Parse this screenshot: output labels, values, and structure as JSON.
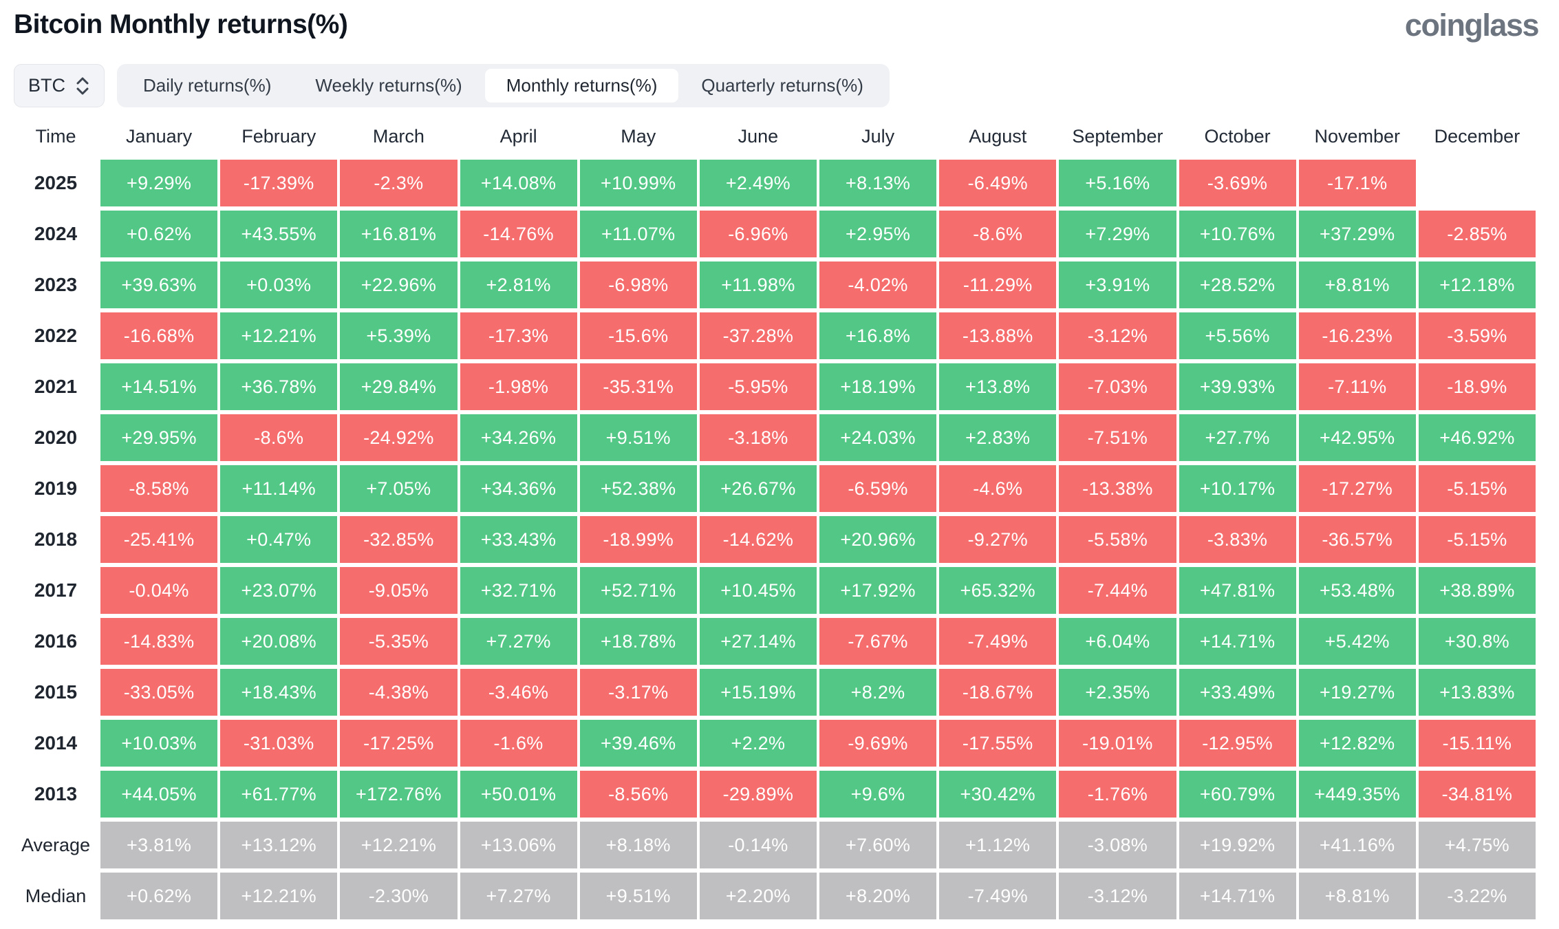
{
  "page": {
    "title": "Bitcoin Monthly returns(%)",
    "logo": "coinglass"
  },
  "controls": {
    "symbol_select": {
      "value": "BTC",
      "icon": "updown-chevron-icon"
    },
    "tabs": [
      {
        "label": "Daily returns(%)",
        "active": false
      },
      {
        "label": "Weekly returns(%)",
        "active": false
      },
      {
        "label": "Monthly returns(%)",
        "active": true
      },
      {
        "label": "Quarterly returns(%)",
        "active": false
      }
    ]
  },
  "chart_data": {
    "type": "heatmap",
    "title": "Bitcoin Monthly returns(%)",
    "time_column_header": "Time",
    "columns": [
      "January",
      "February",
      "March",
      "April",
      "May",
      "June",
      "July",
      "August",
      "September",
      "October",
      "November",
      "December"
    ],
    "rows": [
      {
        "label": "2025",
        "type": "year",
        "values": [
          "+9.29%",
          "-17.39%",
          "-2.3%",
          "+14.08%",
          "+10.99%",
          "+2.49%",
          "+8.13%",
          "-6.49%",
          "+5.16%",
          "-3.69%",
          "-17.1%",
          ""
        ]
      },
      {
        "label": "2024",
        "type": "year",
        "values": [
          "+0.62%",
          "+43.55%",
          "+16.81%",
          "-14.76%",
          "+11.07%",
          "-6.96%",
          "+2.95%",
          "-8.6%",
          "+7.29%",
          "+10.76%",
          "+37.29%",
          "-2.85%"
        ]
      },
      {
        "label": "2023",
        "type": "year",
        "values": [
          "+39.63%",
          "+0.03%",
          "+22.96%",
          "+2.81%",
          "-6.98%",
          "+11.98%",
          "-4.02%",
          "-11.29%",
          "+3.91%",
          "+28.52%",
          "+8.81%",
          "+12.18%"
        ]
      },
      {
        "label": "2022",
        "type": "year",
        "values": [
          "-16.68%",
          "+12.21%",
          "+5.39%",
          "-17.3%",
          "-15.6%",
          "-37.28%",
          "+16.8%",
          "-13.88%",
          "-3.12%",
          "+5.56%",
          "-16.23%",
          "-3.59%"
        ]
      },
      {
        "label": "2021",
        "type": "year",
        "values": [
          "+14.51%",
          "+36.78%",
          "+29.84%",
          "-1.98%",
          "-35.31%",
          "-5.95%",
          "+18.19%",
          "+13.8%",
          "-7.03%",
          "+39.93%",
          "-7.11%",
          "-18.9%"
        ]
      },
      {
        "label": "2020",
        "type": "year",
        "values": [
          "+29.95%",
          "-8.6%",
          "-24.92%",
          "+34.26%",
          "+9.51%",
          "-3.18%",
          "+24.03%",
          "+2.83%",
          "-7.51%",
          "+27.7%",
          "+42.95%",
          "+46.92%"
        ]
      },
      {
        "label": "2019",
        "type": "year",
        "values": [
          "-8.58%",
          "+11.14%",
          "+7.05%",
          "+34.36%",
          "+52.38%",
          "+26.67%",
          "-6.59%",
          "-4.6%",
          "-13.38%",
          "+10.17%",
          "-17.27%",
          "-5.15%"
        ]
      },
      {
        "label": "2018",
        "type": "year",
        "values": [
          "-25.41%",
          "+0.47%",
          "-32.85%",
          "+33.43%",
          "-18.99%",
          "-14.62%",
          "+20.96%",
          "-9.27%",
          "-5.58%",
          "-3.83%",
          "-36.57%",
          "-5.15%"
        ]
      },
      {
        "label": "2017",
        "type": "year",
        "values": [
          "-0.04%",
          "+23.07%",
          "-9.05%",
          "+32.71%",
          "+52.71%",
          "+10.45%",
          "+17.92%",
          "+65.32%",
          "-7.44%",
          "+47.81%",
          "+53.48%",
          "+38.89%"
        ]
      },
      {
        "label": "2016",
        "type": "year",
        "values": [
          "-14.83%",
          "+20.08%",
          "-5.35%",
          "+7.27%",
          "+18.78%",
          "+27.14%",
          "-7.67%",
          "-7.49%",
          "+6.04%",
          "+14.71%",
          "+5.42%",
          "+30.8%"
        ]
      },
      {
        "label": "2015",
        "type": "year",
        "values": [
          "-33.05%",
          "+18.43%",
          "-4.38%",
          "-3.46%",
          "-3.17%",
          "+15.19%",
          "+8.2%",
          "-18.67%",
          "+2.35%",
          "+33.49%",
          "+19.27%",
          "+13.83%"
        ]
      },
      {
        "label": "2014",
        "type": "year",
        "values": [
          "+10.03%",
          "-31.03%",
          "-17.25%",
          "-1.6%",
          "+39.46%",
          "+2.2%",
          "-9.69%",
          "-17.55%",
          "-19.01%",
          "-12.95%",
          "+12.82%",
          "-15.11%"
        ]
      },
      {
        "label": "2013",
        "type": "year",
        "values": [
          "+44.05%",
          "+61.77%",
          "+172.76%",
          "+50.01%",
          "-8.56%",
          "-29.89%",
          "+9.6%",
          "+30.42%",
          "-1.76%",
          "+60.79%",
          "+449.35%",
          "-34.81%"
        ]
      },
      {
        "label": "Average",
        "type": "summary",
        "values": [
          "+3.81%",
          "+13.12%",
          "+12.21%",
          "+13.06%",
          "+8.18%",
          "-0.14%",
          "+7.60%",
          "+1.12%",
          "-3.08%",
          "+19.92%",
          "+41.16%",
          "+4.75%"
        ]
      },
      {
        "label": "Median",
        "type": "summary",
        "values": [
          "+0.62%",
          "+12.21%",
          "-2.30%",
          "+7.27%",
          "+9.51%",
          "+2.20%",
          "+8.20%",
          "-7.49%",
          "-3.12%",
          "+14.71%",
          "+8.81%",
          "-3.22%"
        ]
      }
    ],
    "colors": {
      "positive": "#53c786",
      "negative": "#f66d6d",
      "neutral": "#bfbfc1"
    }
  }
}
